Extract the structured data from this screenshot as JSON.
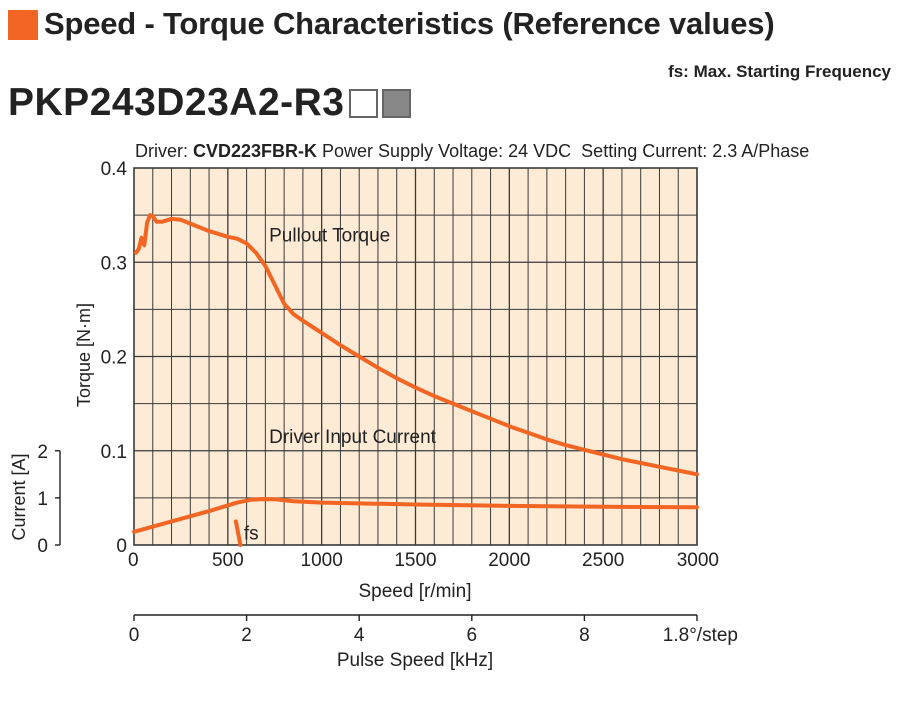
{
  "header": {
    "title": "Speed - Torque Characteristics (Reference values)",
    "square_color": "#f26522",
    "fs_note": "fs: Max. Starting Frequency",
    "model": "PKP243D23A2-R3",
    "model_boxes": [
      {
        "name": "white-box",
        "color": "#ffffff"
      },
      {
        "name": "gray-box",
        "color": "#888888"
      }
    ]
  },
  "chart_data": {
    "type": "line",
    "conditions": {
      "driver_label": "Driver: ",
      "driver_name": "CVD223FBR-K",
      "rest": " Power Supply Voltage: 24 VDC  Setting Current: 2.3 A/Phase"
    },
    "xlabel": "Speed [r/min]",
    "xlim": [
      0,
      3000
    ],
    "xticks": [
      0,
      500,
      1000,
      1500,
      2000,
      2500,
      3000
    ],
    "ylabel": "Torque [N·m]",
    "ylim": [
      0,
      0.4
    ],
    "yticks": [
      "0",
      "0.1",
      "0.2",
      "0.3",
      "0.4"
    ],
    "current_axis": {
      "label": "Current [A]",
      "range": [
        0,
        2
      ],
      "ticks": [
        "0",
        "1",
        "2"
      ]
    },
    "pulse_axis": {
      "label": "Pulse Speed [kHz]",
      "range": [
        0,
        10
      ],
      "ticks": [
        "0",
        "2",
        "4",
        "6",
        "8"
      ],
      "note": "1.8°/step"
    },
    "grid": true,
    "grid_color": "#3a3a3a",
    "plot_bg": "#fdebd6",
    "line_color": "#f26522",
    "series": [
      {
        "name": "Pullout Torque",
        "label_at": [
          720,
          0.322
        ],
        "points": [
          [
            10,
            0.31
          ],
          [
            25,
            0.314
          ],
          [
            40,
            0.326
          ],
          [
            55,
            0.318
          ],
          [
            70,
            0.342
          ],
          [
            85,
            0.35
          ],
          [
            100,
            0.349
          ],
          [
            120,
            0.343
          ],
          [
            150,
            0.343
          ],
          [
            200,
            0.346
          ],
          [
            250,
            0.345
          ],
          [
            300,
            0.341
          ],
          [
            400,
            0.333
          ],
          [
            500,
            0.327
          ],
          [
            550,
            0.325
          ],
          [
            600,
            0.32
          ],
          [
            650,
            0.31
          ],
          [
            700,
            0.296
          ],
          [
            750,
            0.276
          ],
          [
            800,
            0.256
          ],
          [
            850,
            0.245
          ],
          [
            900,
            0.238
          ],
          [
            1000,
            0.225
          ],
          [
            1100,
            0.212
          ],
          [
            1200,
            0.2
          ],
          [
            1300,
            0.188
          ],
          [
            1400,
            0.177
          ],
          [
            1500,
            0.167
          ],
          [
            1600,
            0.158
          ],
          [
            1700,
            0.15
          ],
          [
            1800,
            0.142
          ],
          [
            1900,
            0.134
          ],
          [
            2000,
            0.126
          ],
          [
            2100,
            0.119
          ],
          [
            2200,
            0.112
          ],
          [
            2300,
            0.106
          ],
          [
            2400,
            0.101
          ],
          [
            2500,
            0.096
          ],
          [
            2600,
            0.091
          ],
          [
            2700,
            0.087
          ],
          [
            2800,
            0.083
          ],
          [
            2900,
            0.079
          ],
          [
            3000,
            0.075
          ]
        ]
      },
      {
        "name": "Driver Input Current",
        "unit": "A",
        "label_at": [
          720,
          0.108
        ],
        "points": [
          [
            0,
            0.28
          ],
          [
            200,
            0.5
          ],
          [
            400,
            0.72
          ],
          [
            550,
            0.9
          ],
          [
            620,
            0.96
          ],
          [
            680,
            0.975
          ],
          [
            750,
            0.97
          ],
          [
            850,
            0.93
          ],
          [
            1000,
            0.9
          ],
          [
            1500,
            0.86
          ],
          [
            2000,
            0.83
          ],
          [
            2500,
            0.81
          ],
          [
            3000,
            0.8
          ]
        ]
      }
    ],
    "fs_marker": {
      "label": "fs",
      "points": [
        [
          543,
          0.5
        ],
        [
          567,
          0
        ]
      ]
    }
  }
}
